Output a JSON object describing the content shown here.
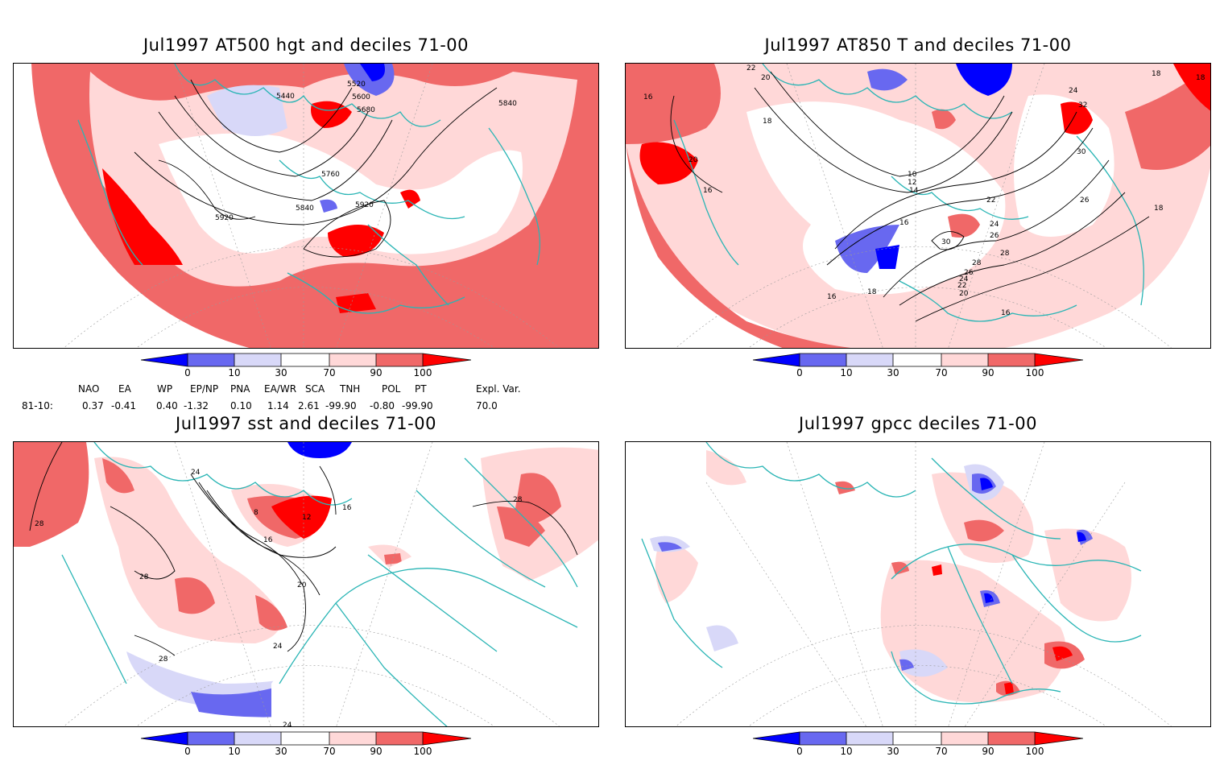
{
  "panels": [
    {
      "title": "Jul1997 AT500 hgt and deciles 71-00",
      "contour_labels": [
        "5440",
        "5520",
        "5600",
        "5680",
        "5840",
        "5760",
        "5920",
        "5840",
        "5920"
      ]
    },
    {
      "title": "Jul1997 AT850 T and deciles 71-00",
      "contour_labels": [
        "22",
        "20",
        "18",
        "16",
        "20",
        "16",
        "10",
        "12",
        "14",
        "16",
        "22",
        "24",
        "26",
        "28",
        "30",
        "28",
        "26",
        "24",
        "22",
        "20",
        "18",
        "16",
        "18",
        "16",
        "30",
        "26",
        "18",
        "32",
        "24",
        "18"
      ]
    },
    {
      "title": "Jul1997 sst and deciles 71-00",
      "contour_labels": [
        "28",
        "24",
        "16",
        "12",
        "8",
        "16",
        "20",
        "24",
        "28",
        "28",
        "28",
        "24"
      ]
    },
    {
      "title": "Jul1997 gpcc deciles 71-00",
      "contour_labels": []
    }
  ],
  "colorbar": {
    "labels": [
      "0",
      "10",
      "30",
      "70",
      "90",
      "100"
    ],
    "colors": {
      "c0_10_dark": "#0000ff",
      "c0_10": "#6868f0",
      "c10_30": "#d8d8f8",
      "c30_70": "#ffffff",
      "c70_90": "#ffd8d8",
      "c90_100": "#f06868",
      "c100": "#ff0000"
    }
  },
  "indices": {
    "headers": [
      "NAO",
      "EA",
      "WP",
      "EP/NP",
      "PNA",
      "EA/WR",
      "SCA",
      "TNH",
      "POL",
      "PT",
      "Expl. Var."
    ],
    "row_label": "81-10:",
    "values": [
      "0.37",
      "-0.41",
      "0.40",
      "-1.32",
      "0.10",
      "1.14",
      "2.61",
      "-99.90",
      "-0.80",
      "-99.90",
      "70.0"
    ]
  },
  "map_colors": {
    "coast": "#2ab5b5",
    "contour": "#000000",
    "graticule": "#9a9a9a"
  }
}
